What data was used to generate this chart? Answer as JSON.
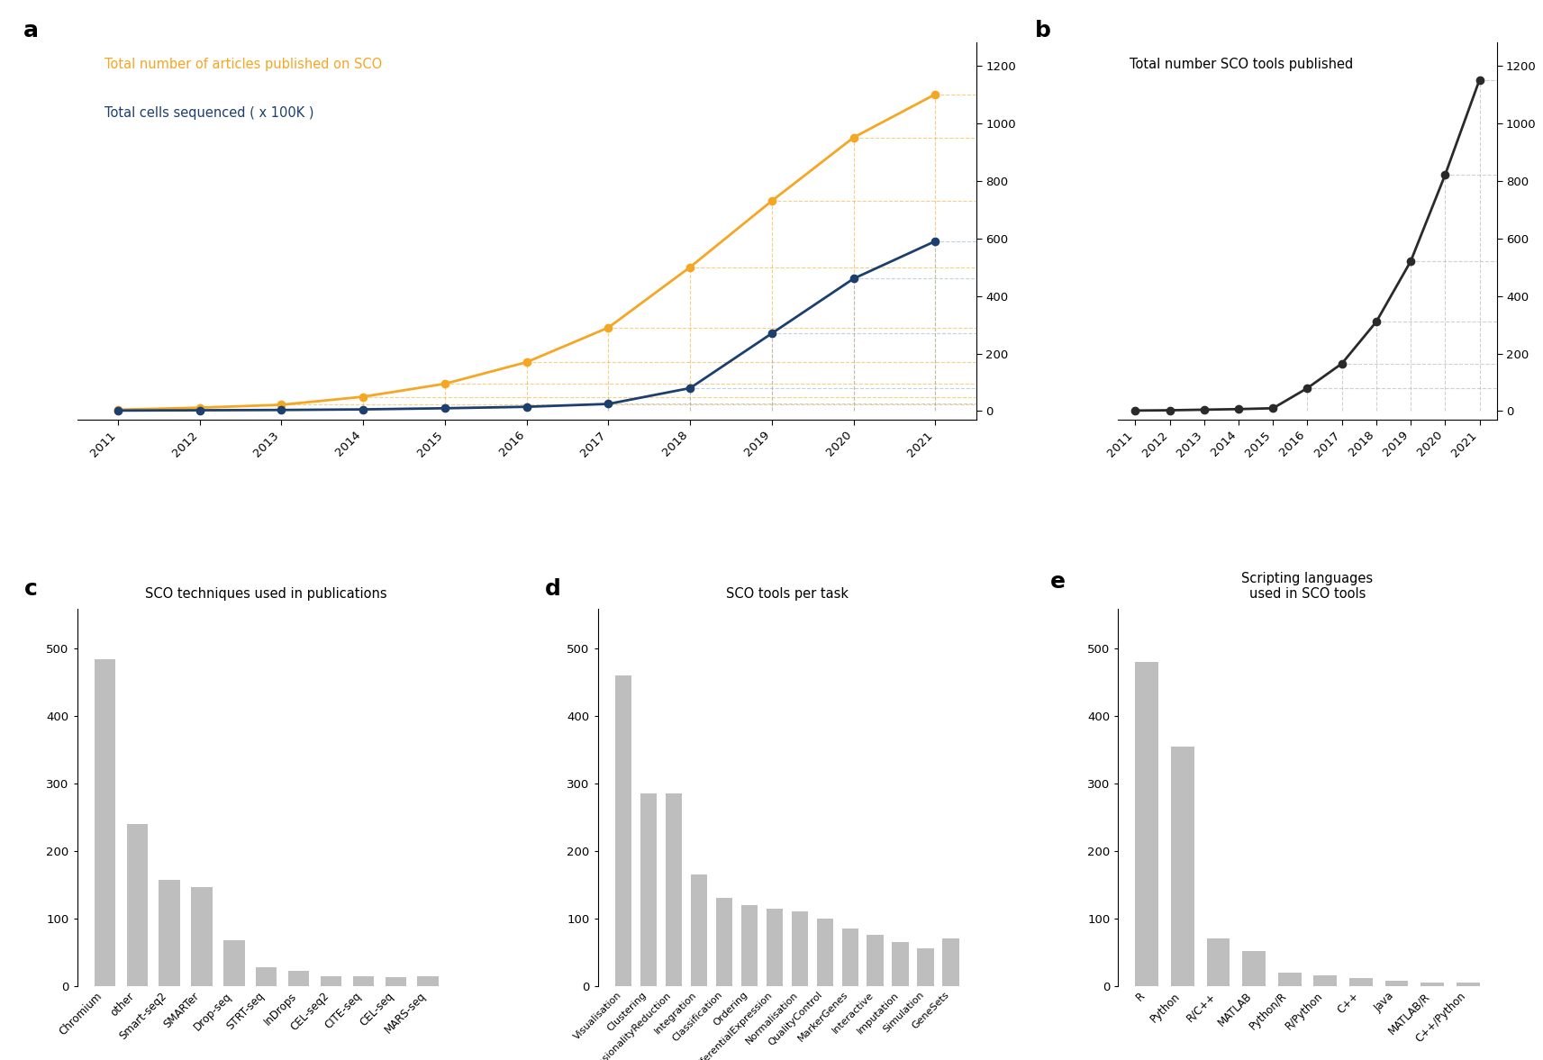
{
  "years": [
    2011,
    2012,
    2013,
    2014,
    2015,
    2016,
    2017,
    2018,
    2019,
    2020,
    2021
  ],
  "articles": [
    5,
    12,
    22,
    50,
    95,
    170,
    290,
    500,
    730,
    950,
    1100
  ],
  "cells": [
    2,
    3,
    4,
    6,
    10,
    15,
    25,
    80,
    270,
    460,
    590
  ],
  "tools": [
    2,
    3,
    5,
    7,
    10,
    80,
    165,
    310,
    520,
    820,
    1150
  ],
  "tech_labels": [
    "Chromium",
    "other",
    "Smart-seq2",
    "SMARTer",
    "Drop-seq",
    "STRT-seq",
    "InDrops",
    "CEL-seq2",
    "CITE-seq",
    "CEL-seq",
    "MARS-seq"
  ],
  "tech_values": [
    485,
    240,
    157,
    146,
    68,
    28,
    22,
    14,
    14,
    13,
    14
  ],
  "task_labels": [
    "Visualisation",
    "Clustering",
    "DimensionalityReduction",
    "Integration",
    "Classification",
    "Ordering",
    "DifferentialExpression",
    "Normalisation",
    "QualityControl",
    "MarkerGenes",
    "Interactive",
    "Imputation",
    "Simulation",
    "GeneSets"
  ],
  "task_values": [
    460,
    285,
    285,
    165,
    130,
    120,
    115,
    110,
    100,
    85,
    75,
    65,
    55,
    70
  ],
  "lang_labels": [
    "R",
    "Python",
    "R/C++",
    "MATLAB",
    "Python/R",
    "R/Python",
    "C++",
    "Java",
    "MATLAB/R",
    "C++/Python"
  ],
  "lang_values": [
    480,
    355,
    70,
    52,
    20,
    15,
    12,
    8,
    5,
    5
  ],
  "orange_color": "#F5A623",
  "navy_color": "#1C3F6E",
  "dark_color": "#2A2A2A",
  "bar_color": "#BEBEBE",
  "grid_orange": "#F5A623",
  "grid_navy": "#8AAFC8",
  "grid_dark": "#AAAAAA"
}
